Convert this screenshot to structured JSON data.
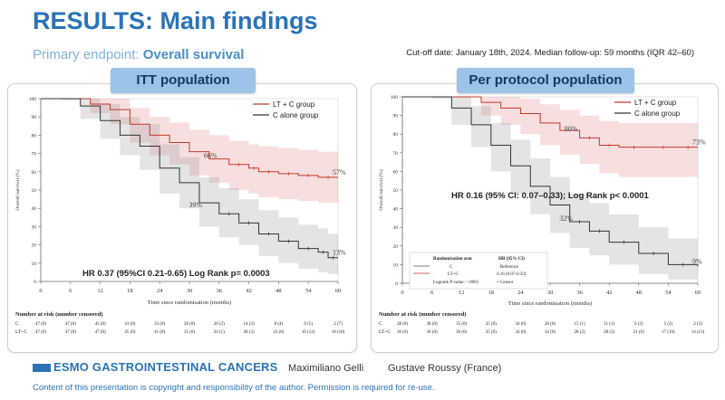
{
  "slide": {
    "title": "RESULTS: Main findings",
    "subtitle_prefix": "Primary endpoint: ",
    "subtitle_strong": "Overall survival",
    "cutoff": "Cut-off date: January 18th, 2024. Median follow-up: 59 months (IQR 42–60)"
  },
  "footer": {
    "logo_text": "ESMO GASTROINTESTINAL CANCERS",
    "author": "Maximiliano Gelli",
    "institution": "Gustave Roussy (France)",
    "copyright": "Content of this presentation is copyright and responsibility of the author. Permission is required for re-use."
  },
  "colors": {
    "lt_c": "#c0392b",
    "c_alone": "#333333",
    "accent": "#2a73b8"
  },
  "chart_data": [
    {
      "type": "line",
      "title": "ITT population",
      "xlabel": "Time since randomisation (months)",
      "ylabel": "Overall survival (%)",
      "xlim": [
        0,
        60
      ],
      "ylim": [
        0,
        100
      ],
      "x_ticks": [
        0,
        6,
        12,
        18,
        24,
        30,
        36,
        42,
        48,
        54,
        60
      ],
      "y_ticks": [
        0,
        10,
        20,
        30,
        40,
        50,
        60,
        70,
        80,
        90,
        100
      ],
      "legend": [
        "LT + C group",
        "C alone group"
      ],
      "legend_position": "top-right",
      "hr_text": "HR 0.37 (95%CI 0.21-0.65) Log Rank p= 0.0003",
      "series": [
        {
          "name": "LT + C group",
          "color": "#c0392b",
          "x": [
            0,
            6,
            10,
            14,
            18,
            22,
            26,
            30,
            34,
            38,
            42,
            44,
            48,
            52,
            56,
            60
          ],
          "y": [
            100,
            100,
            97,
            94,
            86,
            80,
            76,
            71,
            67,
            64,
            62,
            60,
            59,
            58,
            57,
            57
          ],
          "lower": [
            100,
            100,
            92,
            86,
            76,
            69,
            64,
            58,
            54,
            50,
            48,
            46,
            45,
            44,
            43,
            43
          ],
          "upper": [
            100,
            100,
            100,
            100,
            95,
            90,
            87,
            83,
            80,
            77,
            75,
            74,
            73,
            72,
            71,
            71
          ]
        },
        {
          "name": "C alone group",
          "color": "#333333",
          "x": [
            0,
            4,
            8,
            12,
            16,
            20,
            24,
            28,
            32,
            36,
            40,
            44,
            48,
            52,
            56,
            58,
            60
          ],
          "y": [
            100,
            100,
            96,
            88,
            80,
            74,
            62,
            54,
            43,
            37,
            32,
            26,
            22,
            18,
            16,
            13,
            13
          ],
          "lower": [
            100,
            99,
            89,
            78,
            69,
            61,
            48,
            40,
            30,
            24,
            20,
            14,
            10,
            7,
            5,
            4,
            4
          ],
          "upper": [
            100,
            100,
            100,
            97,
            90,
            86,
            75,
            68,
            57,
            51,
            45,
            39,
            35,
            31,
            29,
            26,
            26
          ]
        }
      ],
      "annotations": [
        {
          "x": 34,
          "y": 66,
          "text": "66%"
        },
        {
          "x": 31,
          "y": 39,
          "text": "39%"
        },
        {
          "x": 60,
          "y": 57,
          "text": "57%"
        },
        {
          "x": 60,
          "y": 13,
          "text": "13%"
        }
      ],
      "risk_table": {
        "header": "Number at risk (number censored)",
        "rows": [
          {
            "label": "C",
            "values": [
              "47 (0)",
              "47 (0)",
              "45 (0)",
              "41 (0)",
              "33 (0)",
              "26 (0)",
              "20 (2)",
              "14 (3)",
              "8 (4)",
              "6 (5)",
              "2 (7)"
            ]
          },
          {
            "label": "LT+C",
            "values": [
              "47 (0)",
              "47 (0)",
              "47 (0)",
              "45 (0)",
              "41 (0)",
              "35 (0)",
              "34 (1)",
              "30 (3)",
              "23 (6)",
              "16 (12)",
              "10 (18)"
            ]
          }
        ]
      }
    },
    {
      "type": "line",
      "title": "Per protocol population",
      "xlabel": "Time since randomisation (months)",
      "ylabel": "Overall survival (%)",
      "xlim": [
        0,
        60
      ],
      "ylim": [
        0,
        100
      ],
      "x_ticks": [
        0,
        6,
        12,
        18,
        24,
        30,
        36,
        42,
        48,
        54,
        60
      ],
      "y_ticks": [
        0,
        10,
        20,
        30,
        40,
        50,
        60,
        70,
        80,
        90,
        100
      ],
      "legend": [
        "LT + C group",
        "C alone group"
      ],
      "legend_position": "top-right",
      "hr_text": "HR 0.16 (95% CI: 0.07–0.33); Log Rank p< 0.0001",
      "inset": {
        "header_arm": "Randomisation arm",
        "header_hr": "HR (95% CI)",
        "row1_arm": "C",
        "row1_hr": "Reference",
        "row2_arm": "LT+C",
        "row2_hr": "0.16 (0.07-0.33)",
        "pvalue": "Logrank P-value: <.0001",
        "censor": "+ Censor"
      },
      "series": [
        {
          "name": "LT + C group",
          "color": "#c0392b",
          "x": [
            0,
            10,
            16,
            20,
            24,
            28,
            32,
            36,
            40,
            44,
            50,
            56,
            60
          ],
          "y": [
            100,
            100,
            97,
            94,
            91,
            86,
            82,
            78,
            74,
            73,
            73,
            73,
            73
          ],
          "lower": [
            100,
            100,
            90,
            85,
            80,
            74,
            69,
            64,
            59,
            57,
            57,
            57,
            57
          ],
          "upper": [
            100,
            100,
            100,
            100,
            99,
            96,
            93,
            90,
            87,
            86,
            86,
            86,
            86
          ]
        },
        {
          "name": "C alone group",
          "color": "#333333",
          "x": [
            0,
            6,
            10,
            14,
            18,
            22,
            26,
            30,
            34,
            38,
            42,
            48,
            54,
            60
          ],
          "y": [
            100,
            100,
            94,
            85,
            74,
            63,
            52,
            42,
            33,
            28,
            22,
            16,
            10,
            9
          ],
          "lower": [
            100,
            99,
            85,
            73,
            60,
            48,
            37,
            27,
            19,
            15,
            10,
            5,
            2,
            1
          ],
          "upper": [
            100,
            100,
            100,
            95,
            86,
            77,
            67,
            57,
            48,
            43,
            37,
            30,
            24,
            22
          ]
        }
      ],
      "annotations": [
        {
          "x": 34,
          "y": 80,
          "text": "80%"
        },
        {
          "x": 33,
          "y": 32,
          "text": "32%"
        },
        {
          "x": 60,
          "y": 73,
          "text": "73%"
        },
        {
          "x": 60,
          "y": 9,
          "text": "9%"
        }
      ],
      "risk_table": {
        "header": "Number at risk (number censored)",
        "rows": [
          {
            "label": "C",
            "values": [
              "38 (0)",
              "38 (0)",
              "35 (0)",
              "35 (0)",
              "34 (0)",
              "20 (0)",
              "15 (1)",
              "11 (1)",
              "6 (2)",
              "5 (2)",
              "2 (3)"
            ]
          },
          {
            "label": "LT+C",
            "values": [
              "36 (0)",
              "36 (0)",
              "36 (0)",
              "35 (0)",
              "34 (0)",
              "32 (0)",
              "28 (2)",
              "28 (3)",
              "21 (6)",
              "17 (10)",
              "14 (13)"
            ]
          }
        ]
      }
    }
  ]
}
